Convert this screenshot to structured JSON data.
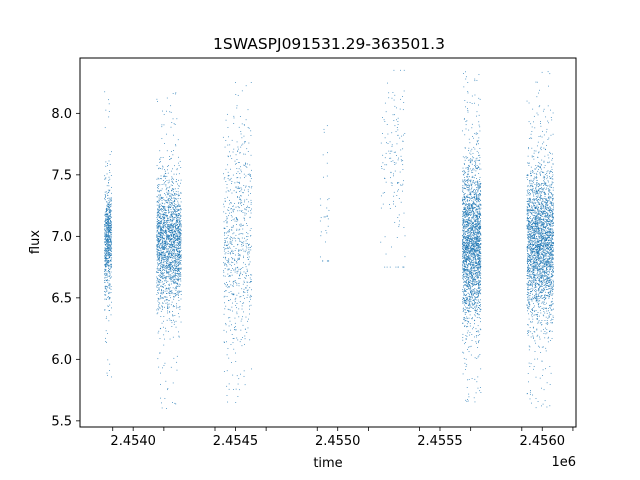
{
  "chart_data": {
    "type": "scatter",
    "title": "1SWASPJ091531.29-363501.3",
    "xlabel": "time",
    "ylabel": "flux",
    "x_offset_label": "1e6",
    "xlim": [
      2453740,
      2456165
    ],
    "ylim": [
      5.45,
      8.45
    ],
    "x_ticks": [
      2453900,
      2454150,
      2454400,
      2454650,
      2454900,
      2455150,
      2455400,
      2455650,
      2455900,
      2456150
    ],
    "x_tick_labels": [
      "2.4540",
      "2.4545",
      "2.4550",
      "2.4555",
      "2.4560"
    ],
    "x_tick_label_values": [
      2454000,
      2454500,
      2455000,
      2455500,
      2456000
    ],
    "y_ticks": [
      5.5,
      6.0,
      6.5,
      7.0,
      7.5,
      8.0
    ],
    "y_tick_labels": [
      "5.5",
      "6.0",
      "6.5",
      "7.0",
      "7.5",
      "8.0"
    ],
    "grid": false,
    "marker_color": "#1f77b4",
    "series": [
      {
        "clusters": [
          {
            "x_start": 2453860,
            "x_end": 2453895,
            "y_center": 6.95,
            "y_spread": 0.22,
            "y_min": 5.7,
            "y_max": 8.25,
            "count": 700
          },
          {
            "x_start": 2454115,
            "x_end": 2454235,
            "y_center": 6.95,
            "y_spread": 0.26,
            "y_min": 5.6,
            "y_max": 8.2,
            "count": 2000
          },
          {
            "x_start": 2454440,
            "x_end": 2454580,
            "y_center": 6.95,
            "y_spread": 0.45,
            "y_min": 5.65,
            "y_max": 8.25,
            "count": 700
          },
          {
            "x_start": 2454915,
            "x_end": 2454960,
            "y_center": 7.2,
            "y_spread": 0.45,
            "y_min": 6.8,
            "y_max": 7.9,
            "count": 35
          },
          {
            "x_start": 2455210,
            "x_end": 2455330,
            "y_center": 7.55,
            "y_spread": 0.4,
            "y_min": 6.75,
            "y_max": 8.35,
            "count": 150
          },
          {
            "x_start": 2455610,
            "x_end": 2455700,
            "y_center": 6.95,
            "y_spread": 0.32,
            "y_min": 5.65,
            "y_max": 8.35,
            "count": 2300
          },
          {
            "x_start": 2455925,
            "x_end": 2456055,
            "y_center": 6.95,
            "y_spread": 0.3,
            "y_min": 5.6,
            "y_max": 8.35,
            "count": 2700
          }
        ]
      }
    ]
  }
}
